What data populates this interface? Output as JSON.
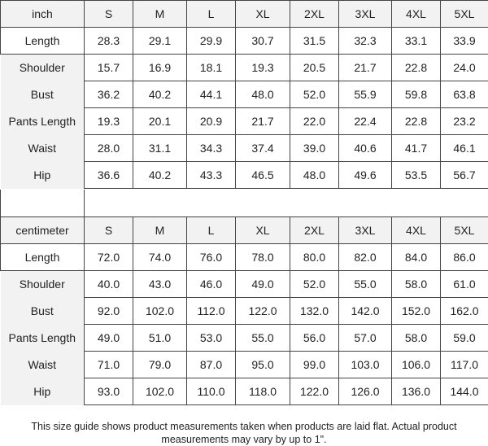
{
  "sizes": [
    "S",
    "M",
    "L",
    "XL",
    "2XL",
    "3XL",
    "4XL",
    "5XL"
  ],
  "tables": [
    {
      "unit": "inch",
      "rows": [
        {
          "label": "Length",
          "values": [
            "28.3",
            "29.1",
            "29.9",
            "30.7",
            "31.5",
            "32.3",
            "33.1",
            "33.9"
          ]
        },
        {
          "label": "Shoulder",
          "values": [
            "15.7",
            "16.9",
            "18.1",
            "19.3",
            "20.5",
            "21.7",
            "22.8",
            "24.0"
          ]
        },
        {
          "label": "Bust",
          "values": [
            "36.2",
            "40.2",
            "44.1",
            "48.0",
            "52.0",
            "55.9",
            "59.8",
            "63.8"
          ]
        },
        {
          "label": "Pants Length",
          "values": [
            "19.3",
            "20.1",
            "20.9",
            "21.7",
            "22.0",
            "22.4",
            "22.8",
            "23.2"
          ]
        },
        {
          "label": "Waist",
          "values": [
            "28.0",
            "31.1",
            "34.3",
            "37.4",
            "39.0",
            "40.6",
            "41.7",
            "46.1"
          ]
        },
        {
          "label": "Hip",
          "values": [
            "36.6",
            "40.2",
            "43.3",
            "46.5",
            "48.0",
            "49.6",
            "53.5",
            "56.7"
          ]
        }
      ]
    },
    {
      "unit": "centimeter",
      "rows": [
        {
          "label": "Length",
          "values": [
            "72.0",
            "74.0",
            "76.0",
            "78.0",
            "80.0",
            "82.0",
            "84.0",
            "86.0"
          ]
        },
        {
          "label": "Shoulder",
          "values": [
            "40.0",
            "43.0",
            "46.0",
            "49.0",
            "52.0",
            "55.0",
            "58.0",
            "61.0"
          ]
        },
        {
          "label": "Bust",
          "values": [
            "92.0",
            "102.0",
            "112.0",
            "122.0",
            "132.0",
            "142.0",
            "152.0",
            "162.0"
          ]
        },
        {
          "label": "Pants Length",
          "values": [
            "49.0",
            "51.0",
            "53.0",
            "55.0",
            "56.0",
            "57.0",
            "58.0",
            "59.0"
          ]
        },
        {
          "label": "Waist",
          "values": [
            "71.0",
            "79.0",
            "87.0",
            "95.0",
            "99.0",
            "103.0",
            "106.0",
            "117.0"
          ]
        },
        {
          "label": "Hip",
          "values": [
            "93.0",
            "102.0",
            "110.0",
            "118.0",
            "122.0",
            "126.0",
            "136.0",
            "144.0"
          ]
        }
      ]
    }
  ],
  "note": "This size guide shows product measurements taken when products are laid flat. Actual product measurements may vary by up to 1\"."
}
